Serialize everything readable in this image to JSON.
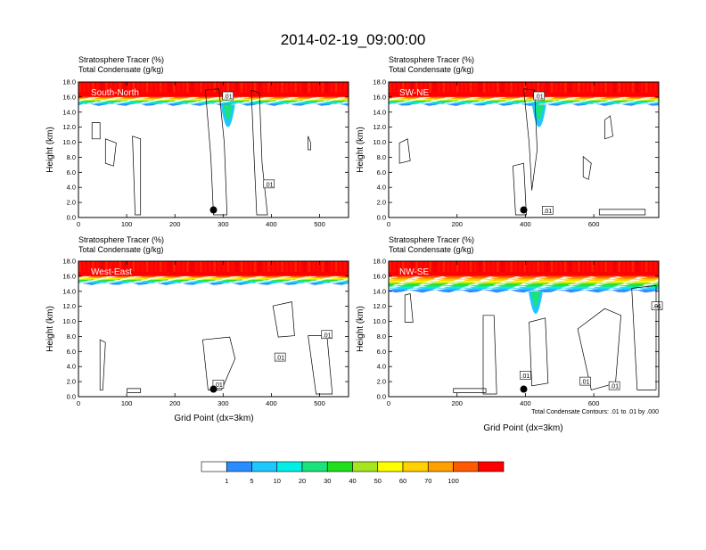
{
  "title": "2014-02-19_09:00:00",
  "subtitle_line1": "Stratosphere Tracer   (%)",
  "subtitle_line2": "Total Condensate   (g/kg)",
  "ylabel": "Height (km)",
  "xlabel": "Grid Point (dx=3km)",
  "contour_note": "Total Condensate Contours: .01 to .01 by .000",
  "colorbar": {
    "colors": [
      "#ffffff",
      "#2b8cff",
      "#1ec8ff",
      "#00f0e8",
      "#19e37a",
      "#1ee01e",
      "#a6e61e",
      "#ffff00",
      "#ffd100",
      "#ff9f00",
      "#ff5a00",
      "#ff0000"
    ],
    "labels": [
      "1",
      "5",
      "10",
      "20",
      "30",
      "40",
      "50",
      "60",
      "70",
      "100"
    ]
  },
  "chart_data": [
    {
      "type": "heatmap",
      "panel": "South-North",
      "xlim": [
        0,
        560
      ],
      "xticks": [
        "0",
        "100",
        "200",
        "300",
        "400",
        "500"
      ],
      "xtick_values": [
        0,
        100,
        200,
        300,
        400,
        500
      ],
      "ylim": [
        0,
        18
      ],
      "yticks": [
        "0.0",
        "2.0",
        "4.0",
        "6.0",
        "8.0",
        "10.0",
        "12.0",
        "14.0",
        "16.0",
        "18.0"
      ],
      "tracer_base_km": 15.0,
      "tropopause_dip_x": 310,
      "contour_labels": [
        {
          "text": ".01",
          "x": 310,
          "y": 16.1
        },
        {
          "text": ".01",
          "x": 395,
          "y": 4.4
        }
      ],
      "marker": {
        "x": 280,
        "y": 1.0
      }
    },
    {
      "type": "heatmap",
      "panel": "SW-NE",
      "xlim": [
        0,
        790
      ],
      "xticks": [
        "0",
        "200",
        "400",
        "600"
      ],
      "xtick_values": [
        0,
        200,
        400,
        600
      ],
      "ylim": [
        0,
        18
      ],
      "yticks": [
        "0.0",
        "2.0",
        "4.0",
        "6.0",
        "8.0",
        "10.0",
        "12.0",
        "14.0",
        "16.0",
        "18.0"
      ],
      "tracer_base_km": 15.0,
      "tropopause_dip_x": 440,
      "contour_labels": [
        {
          "text": ".01",
          "x": 440,
          "y": 16.1
        },
        {
          "text": ".01",
          "x": 465,
          "y": 0.9
        }
      ],
      "marker": {
        "x": 395,
        "y": 1.0
      }
    },
    {
      "type": "heatmap",
      "panel": "West-East",
      "xlim": [
        0,
        560
      ],
      "xticks": [
        "0",
        "100",
        "200",
        "300",
        "400",
        "500"
      ],
      "xtick_values": [
        0,
        100,
        200,
        300,
        400,
        500
      ],
      "ylim": [
        0,
        18
      ],
      "yticks": [
        "0.0",
        "2.0",
        "4.0",
        "6.0",
        "8.0",
        "10.0",
        "12.0",
        "14.0",
        "16.0",
        "18.0"
      ],
      "tracer_base_km": 15.0,
      "tropopause_dip_x": null,
      "contour_labels": [
        {
          "text": ".01",
          "x": 418,
          "y": 5.2
        },
        {
          "text": ".01",
          "x": 515,
          "y": 8.2
        },
        {
          "text": ".01",
          "x": 290,
          "y": 1.6
        }
      ],
      "marker": {
        "x": 280,
        "y": 1.0
      }
    },
    {
      "type": "heatmap",
      "panel": "NW-SE",
      "xlim": [
        0,
        790
      ],
      "xticks": [
        "0",
        "200",
        "400",
        "600"
      ],
      "xtick_values": [
        0,
        200,
        400,
        600
      ],
      "ylim": [
        0,
        18
      ],
      "yticks": [
        "0.0",
        "2.0",
        "4.0",
        "6.0",
        "8.0",
        "10.0",
        "12.0",
        "14.0",
        "16.0",
        "18.0"
      ],
      "tracer_base_km": 14.0,
      "tropopause_dip_x": 430,
      "contour_labels": [
        {
          "text": ".01",
          "x": 575,
          "y": 2.0
        },
        {
          "text": ".01",
          "x": 660,
          "y": 1.4
        },
        {
          "text": ".01",
          "x": 785,
          "y": 12.0
        },
        {
          "text": ".01",
          "x": 400,
          "y": 2.8
        }
      ],
      "marker": {
        "x": 395,
        "y": 1.0
      }
    }
  ]
}
